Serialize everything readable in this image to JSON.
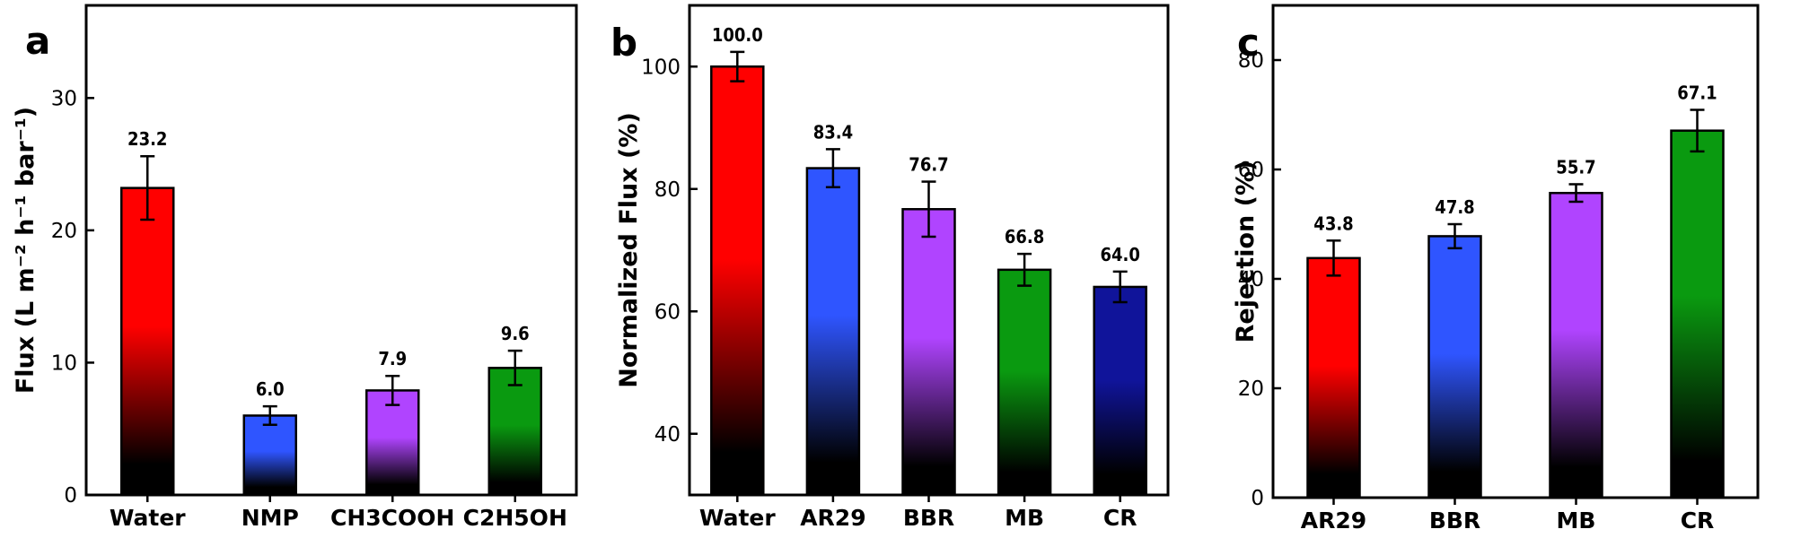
{
  "chart_data": [
    {
      "type": "bar",
      "panel_label": "a",
      "ylabel": "Flux (L m⁻² h⁻¹ bar⁻¹)",
      "categories": [
        "Water",
        "NMP",
        "CH3COOH",
        "C2H5OH"
      ],
      "values": [
        23.2,
        6.0,
        7.9,
        9.6
      ],
      "data_labels": [
        "23.2",
        "6.0",
        "7.9",
        "9.6"
      ],
      "errors": [
        2.4,
        0.7,
        1.1,
        1.3
      ],
      "colors": [
        "#ff0000",
        "#2f55ff",
        "#b044ff",
        "#0a9a10"
      ],
      "ylim": [
        0,
        37
      ],
      "yticks": [
        0,
        10,
        20,
        30
      ],
      "ytick_labels": [
        "0",
        "10",
        "20",
        "30"
      ]
    },
    {
      "type": "bar",
      "panel_label": "b",
      "ylabel": "Normalized Flux (%)",
      "categories": [
        "Water",
        "AR29",
        "BBR",
        "MB",
        "CR"
      ],
      "values": [
        100.0,
        83.4,
        76.7,
        66.8,
        64.0
      ],
      "data_labels": [
        "100.0",
        "83.4",
        "76.7",
        "66.8",
        "64.0"
      ],
      "errors": [
        2.4,
        3.1,
        4.5,
        2.6,
        2.5
      ],
      "colors": [
        "#ff0000",
        "#2f55ff",
        "#b044ff",
        "#0a9a10",
        "#10149a"
      ],
      "ylim": [
        30,
        110
      ],
      "yticks": [
        40,
        60,
        80,
        100
      ],
      "ytick_labels": [
        "40",
        "60",
        "80",
        "100"
      ]
    },
    {
      "type": "bar",
      "panel_label": "c",
      "ylabel": "Rejection (%)",
      "categories": [
        "AR29",
        "BBR",
        "MB",
        "CR"
      ],
      "values": [
        43.8,
        47.8,
        55.7,
        67.1
      ],
      "data_labels": [
        "43.8",
        "47.8",
        "55.7",
        "67.1"
      ],
      "errors": [
        3.2,
        2.2,
        1.6,
        3.8
      ],
      "colors": [
        "#ff0000",
        "#2f55ff",
        "#b044ff",
        "#0a9a10"
      ],
      "ylim": [
        0,
        90
      ],
      "yticks": [
        0,
        20,
        40,
        60,
        80
      ],
      "ytick_labels": [
        "0",
        "20",
        "40",
        "60",
        "80"
      ]
    }
  ]
}
